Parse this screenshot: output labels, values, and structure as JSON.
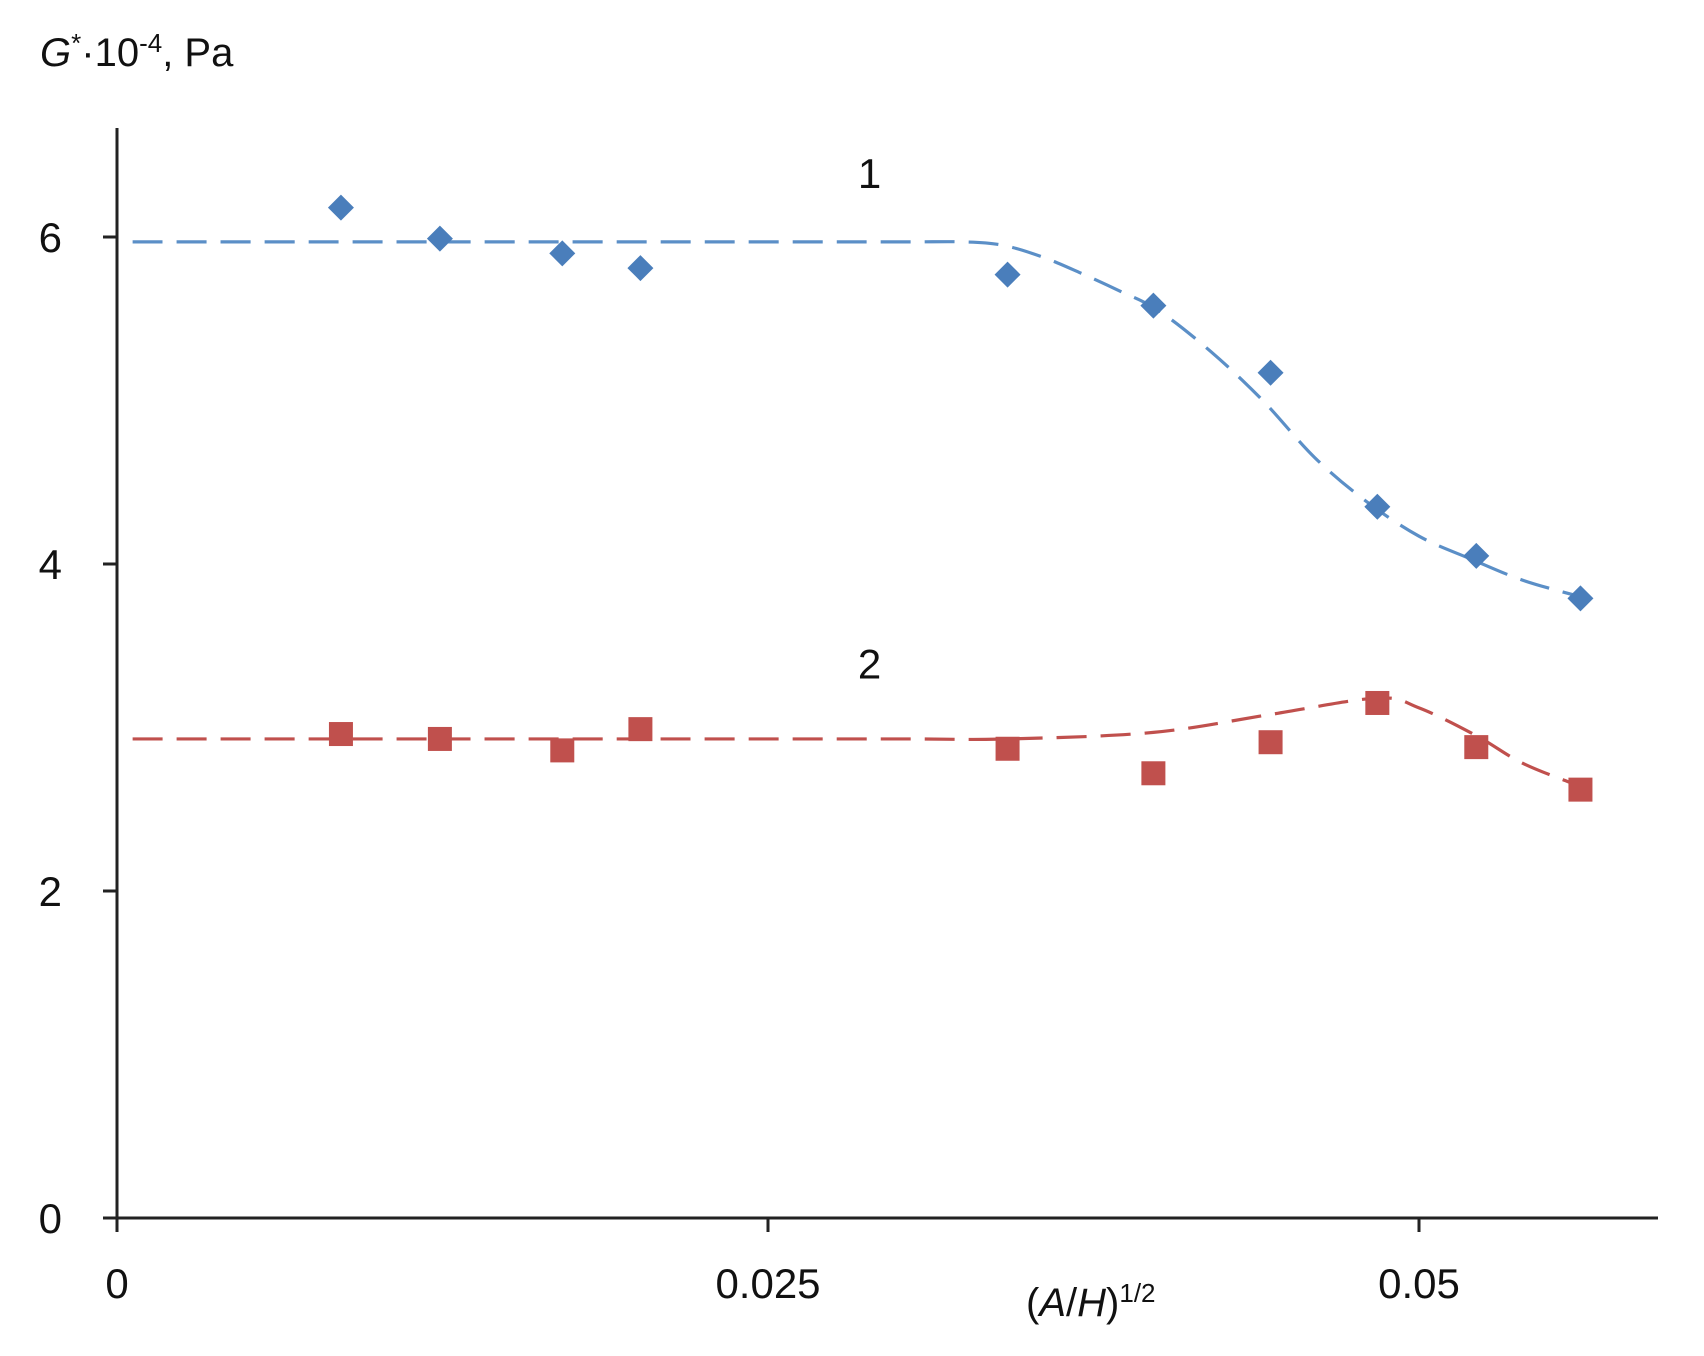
{
  "chart_data": {
    "type": "scatter",
    "ylabel": {
      "symbol": "G",
      "sup1": "*",
      "mult": "·10",
      "sup2": "-4",
      "unit": ", Pa"
    },
    "xlabel": {
      "open": "(",
      "a": "A",
      "slash": "/",
      "h": "H",
      "close": ")",
      "sup": "1/2"
    },
    "xlim": [
      0,
      0.06
    ],
    "ylim": [
      0,
      6.7
    ],
    "x_ticks": [
      {
        "value": 0,
        "label": "0"
      },
      {
        "value": 0.025,
        "label": "0.025"
      },
      {
        "value": 0.05,
        "label": "0.05"
      }
    ],
    "y_ticks": [
      {
        "value": 0,
        "label": "0"
      },
      {
        "value": 2,
        "label": "2"
      },
      {
        "value": 4,
        "label": "4"
      },
      {
        "value": 6,
        "label": "6"
      }
    ],
    "grid": false,
    "legend": "none",
    "series": [
      {
        "label": "1",
        "label_pos": {
          "x": 0.0289,
          "y": 6.3
        },
        "color": "#4a7ebb",
        "line_color": "#5b8fc7",
        "marker": "diamond",
        "points": [
          {
            "x": 0.0086,
            "y": 6.18
          },
          {
            "x": 0.0124,
            "y": 5.99
          },
          {
            "x": 0.0171,
            "y": 5.9
          },
          {
            "x": 0.0201,
            "y": 5.81
          },
          {
            "x": 0.0342,
            "y": 5.77
          },
          {
            "x": 0.0398,
            "y": 5.58
          },
          {
            "x": 0.0443,
            "y": 5.17
          },
          {
            "x": 0.0484,
            "y": 4.35
          },
          {
            "x": 0.0522,
            "y": 4.05
          },
          {
            "x": 0.0562,
            "y": 3.79
          }
        ],
        "fit": [
          {
            "x": 0.0006,
            "y": 5.97
          },
          {
            "x": 0.008,
            "y": 5.97
          },
          {
            "x": 0.016,
            "y": 5.97
          },
          {
            "x": 0.024,
            "y": 5.97
          },
          {
            "x": 0.03,
            "y": 5.97
          },
          {
            "x": 0.0325,
            "y": 5.97
          },
          {
            "x": 0.034,
            "y": 5.95
          },
          {
            "x": 0.0355,
            "y": 5.88
          },
          {
            "x": 0.037,
            "y": 5.78
          },
          {
            "x": 0.0385,
            "y": 5.67
          },
          {
            "x": 0.04,
            "y": 5.55
          },
          {
            "x": 0.042,
            "y": 5.3
          },
          {
            "x": 0.044,
            "y": 5.0
          },
          {
            "x": 0.046,
            "y": 4.65
          },
          {
            "x": 0.048,
            "y": 4.38
          },
          {
            "x": 0.05,
            "y": 4.17
          },
          {
            "x": 0.052,
            "y": 4.03
          },
          {
            "x": 0.054,
            "y": 3.9
          },
          {
            "x": 0.0562,
            "y": 3.8
          }
        ]
      },
      {
        "label": "2",
        "label_pos": {
          "x": 0.0289,
          "y": 3.3
        },
        "color": "#c0504d",
        "line_color": "#c0504d",
        "marker": "square",
        "points": [
          {
            "x": 0.0086,
            "y": 2.96
          },
          {
            "x": 0.0124,
            "y": 2.93
          },
          {
            "x": 0.0171,
            "y": 2.86
          },
          {
            "x": 0.0201,
            "y": 2.99
          },
          {
            "x": 0.0342,
            "y": 2.87
          },
          {
            "x": 0.0398,
            "y": 2.72
          },
          {
            "x": 0.0443,
            "y": 2.91
          },
          {
            "x": 0.0484,
            "y": 3.15
          },
          {
            "x": 0.0522,
            "y": 2.88
          },
          {
            "x": 0.0562,
            "y": 2.62
          }
        ],
        "fit": [
          {
            "x": 0.0006,
            "y": 2.93
          },
          {
            "x": 0.01,
            "y": 2.93
          },
          {
            "x": 0.02,
            "y": 2.93
          },
          {
            "x": 0.03,
            "y": 2.93
          },
          {
            "x": 0.0342,
            "y": 2.93
          },
          {
            "x": 0.0398,
            "y": 2.97
          },
          {
            "x": 0.0443,
            "y": 3.08
          },
          {
            "x": 0.0484,
            "y": 3.18
          },
          {
            "x": 0.05,
            "y": 3.12
          },
          {
            "x": 0.0522,
            "y": 2.95
          },
          {
            "x": 0.054,
            "y": 2.78
          },
          {
            "x": 0.0562,
            "y": 2.64
          }
        ]
      }
    ]
  }
}
